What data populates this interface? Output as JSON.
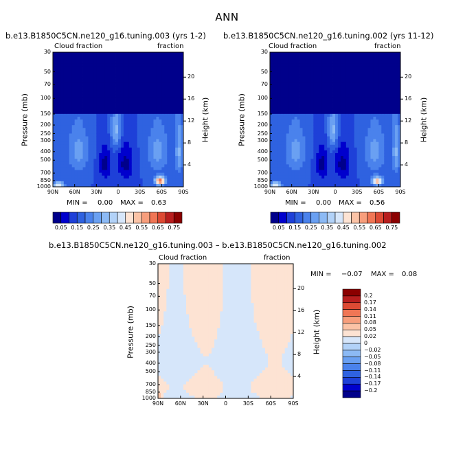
{
  "page_title": "ANN",
  "colors": {
    "seq": [
      "#00008b",
      "#0000cd",
      "#1e40d8",
      "#2f62e0",
      "#4a82ec",
      "#6aa0f2",
      "#8cbaf5",
      "#b2d2f8",
      "#d6e6fa",
      "#fde3d3",
      "#fbc3a6",
      "#f79e7c",
      "#f07655",
      "#dd4a34",
      "#b81e1e",
      "#8b0000"
    ],
    "diff_pos": [
      "#fde3d3",
      "#fbc3a6",
      "#f79e7c",
      "#f07655",
      "#dd4a34",
      "#b81e1e",
      "#8b0000"
    ],
    "diff_neg": [
      "#d6e6fa",
      "#b2d2f8",
      "#8cbaf5",
      "#6aa0f2",
      "#4a82ec",
      "#2f62e0",
      "#1e40d8",
      "#0000cd",
      "#00008b"
    ]
  },
  "chart_data": [
    {
      "type": "heatmap",
      "id": "panel1",
      "title": "b.e13.B1850C5CN.ne120_g16.tuning.003 (yrs 1-2)",
      "left_label": "Cloud fraction",
      "right_label": "fraction",
      "ylabel": "Pressure (mb)",
      "y2label": "Height (km)",
      "x_ticks": [
        "90N",
        "60N",
        "30N",
        "0",
        "30S",
        "60S",
        "90S"
      ],
      "y_ticks": [
        "30",
        "50",
        "70",
        "100",
        "150",
        "200",
        "250",
        "300",
        "400",
        "500",
        "700",
        "850",
        "1000"
      ],
      "y2_ticks": [
        "20",
        "16",
        "12",
        "8",
        "4"
      ],
      "min_label": "MIN =",
      "min_value": "0.00",
      "max_label": "MAX =",
      "max_value": "0.63",
      "colorbar_labels": [
        "0.05",
        "0.15",
        "0.25",
        "0.35",
        "0.45",
        "0.55",
        "0.65",
        "0.75"
      ]
    },
    {
      "type": "heatmap",
      "id": "panel2",
      "title": "b.e13.B1850C5CN.ne120_g16.tuning.002 (yrs 11-12)",
      "left_label": "Cloud fraction",
      "right_label": "fraction",
      "ylabel": "Pressure (mb)",
      "y2label": "Height (km)",
      "x_ticks": [
        "90N",
        "60N",
        "30N",
        "0",
        "30S",
        "60S",
        "90S"
      ],
      "y_ticks": [
        "30",
        "50",
        "70",
        "100",
        "150",
        "200",
        "250",
        "300",
        "400",
        "500",
        "700",
        "850",
        "1000"
      ],
      "y2_ticks": [
        "20",
        "16",
        "12",
        "8",
        "4"
      ],
      "min_label": "MIN =",
      "min_value": "0.00",
      "max_label": "MAX =",
      "max_value": "0.56",
      "colorbar_labels": [
        "0.05",
        "0.15",
        "0.25",
        "0.35",
        "0.45",
        "0.55",
        "0.65",
        "0.75"
      ]
    },
    {
      "type": "heatmap",
      "id": "diff",
      "title": "b.e13.B1850C5CN.ne120_g16.tuning.003 – b.e13.B1850C5CN.ne120_g16.tuning.002",
      "left_label": "Cloud fraction",
      "right_label": "fraction",
      "ylabel": "Pressure (mb)",
      "y2label": "Height (km)",
      "x_ticks": [
        "90N",
        "60N",
        "30N",
        "0",
        "30S",
        "60S",
        "90S"
      ],
      "y_ticks": [
        "30",
        "50",
        "70",
        "100",
        "150",
        "200",
        "250",
        "300",
        "400",
        "500",
        "700",
        "850",
        "1000"
      ],
      "y2_ticks": [
        "20",
        "16",
        "12",
        "8",
        "4"
      ],
      "min_label": "MIN =",
      "min_value": "−0.07",
      "max_label": "MAX =",
      "max_value": "0.08",
      "colorbar_labels": [
        "0.2",
        "0.17",
        "0.14",
        "0.11",
        "0.08",
        "0.05",
        "0.02",
        "0",
        "−0.02",
        "−0.05",
        "−0.08",
        "−0.11",
        "−0.14",
        "−0.17",
        "−0.2"
      ]
    }
  ]
}
